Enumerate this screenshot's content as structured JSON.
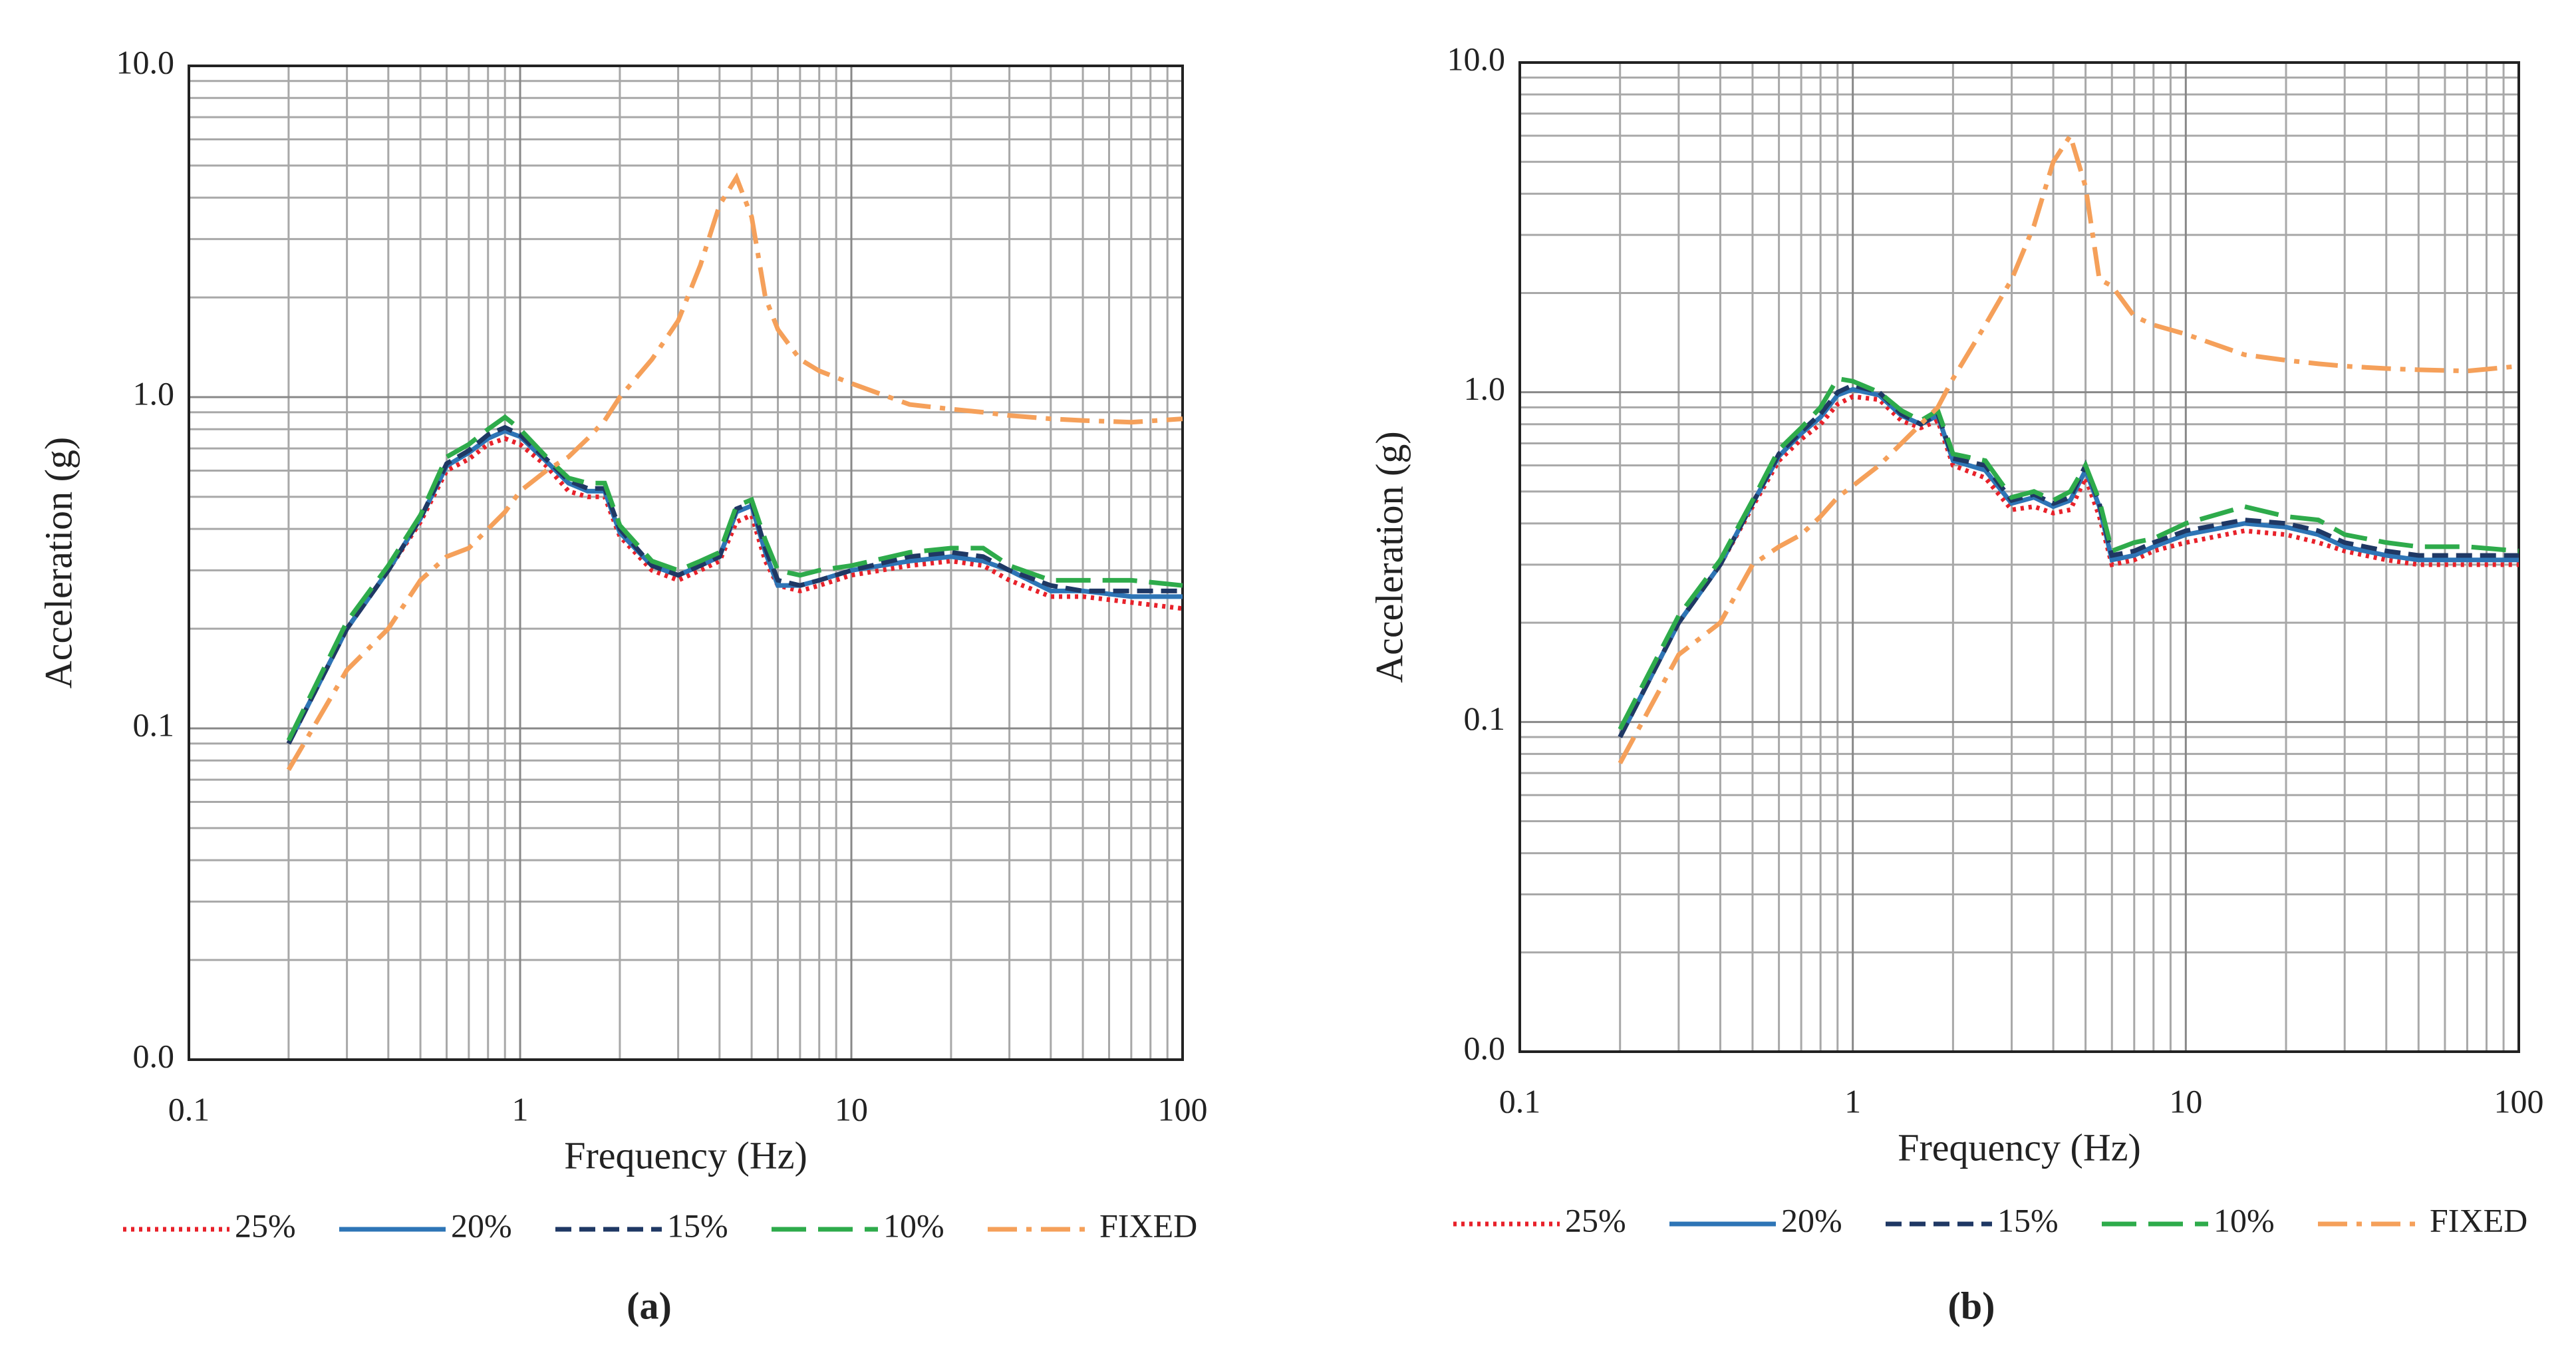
{
  "chart_data": [
    {
      "type": "line",
      "caption": "(a)",
      "xlabel": "Frequency (Hz)",
      "ylabel": "Acceleration (g)",
      "xscale": "log",
      "yscale": "log",
      "grid": true,
      "minor_grid": true,
      "legend": "bottom",
      "xlim": [
        0.1,
        100
      ],
      "xticks": [
        0.1,
        1,
        10,
        100
      ],
      "ylim": [
        0.01,
        10
      ],
      "yticks": [
        {
          "value": 0.01,
          "label": "0.0"
        },
        {
          "value": 0.1,
          "label": "0.1"
        },
        {
          "value": 1,
          "label": "1.0"
        },
        {
          "value": 10,
          "label": "10.0"
        }
      ],
      "x": [
        0.2,
        0.3,
        0.4,
        0.5,
        0.6,
        0.7,
        0.8,
        0.9,
        1.0,
        1.2,
        1.4,
        1.6,
        1.8,
        2.0,
        2.5,
        3,
        3.5,
        4,
        4.5,
        5,
        5.5,
        6,
        7,
        8,
        10,
        15,
        20,
        25,
        30,
        40,
        50,
        70,
        100
      ],
      "series": [
        {
          "name": "25%",
          "color": "#e8212a",
          "style": "dotted",
          "values": [
            0.09,
            0.2,
            0.3,
            0.42,
            0.6,
            0.65,
            0.72,
            0.75,
            0.72,
            0.62,
            0.52,
            0.5,
            0.5,
            0.38,
            0.3,
            0.28,
            0.3,
            0.32,
            0.42,
            0.44,
            0.32,
            0.27,
            0.26,
            0.27,
            0.29,
            0.31,
            0.32,
            0.31,
            0.28,
            0.25,
            0.25,
            0.24,
            0.23
          ]
        },
        {
          "name": "20%",
          "color": "#2e75b6",
          "style": "solid",
          "values": [
            0.09,
            0.2,
            0.3,
            0.43,
            0.62,
            0.68,
            0.75,
            0.79,
            0.76,
            0.64,
            0.55,
            0.52,
            0.52,
            0.39,
            0.31,
            0.29,
            0.31,
            0.33,
            0.45,
            0.47,
            0.34,
            0.27,
            0.27,
            0.28,
            0.3,
            0.32,
            0.33,
            0.32,
            0.3,
            0.26,
            0.26,
            0.25,
            0.25
          ]
        },
        {
          "name": "15%",
          "color": "#1f3864",
          "style": "dashed",
          "values": [
            0.09,
            0.2,
            0.3,
            0.43,
            0.63,
            0.69,
            0.77,
            0.81,
            0.77,
            0.65,
            0.56,
            0.53,
            0.53,
            0.4,
            0.31,
            0.29,
            0.31,
            0.33,
            0.46,
            0.48,
            0.35,
            0.28,
            0.27,
            0.28,
            0.3,
            0.33,
            0.34,
            0.33,
            0.3,
            0.27,
            0.26,
            0.26,
            0.26
          ]
        },
        {
          "name": "10%",
          "color": "#2eab4b",
          "style": "longdash",
          "values": [
            0.092,
            0.21,
            0.31,
            0.44,
            0.66,
            0.72,
            0.8,
            0.87,
            0.8,
            0.66,
            0.57,
            0.55,
            0.55,
            0.41,
            0.32,
            0.3,
            0.32,
            0.34,
            0.47,
            0.49,
            0.37,
            0.3,
            0.29,
            0.3,
            0.31,
            0.34,
            0.35,
            0.35,
            0.31,
            0.28,
            0.28,
            0.28,
            0.27
          ]
        },
        {
          "name": "FIXED",
          "color": "#f5a05a",
          "style": "dashdot",
          "values": [
            0.075,
            0.15,
            0.2,
            0.28,
            0.33,
            0.35,
            0.4,
            0.45,
            0.52,
            0.6,
            0.66,
            0.75,
            0.85,
            1.0,
            1.3,
            1.7,
            2.5,
            3.8,
            4.6,
            3.5,
            2.0,
            1.6,
            1.3,
            1.2,
            1.1,
            0.95,
            0.92,
            0.9,
            0.88,
            0.86,
            0.85,
            0.84,
            0.86
          ]
        }
      ]
    },
    {
      "type": "line",
      "caption": "(b)",
      "xlabel": "Frequency (Hz)",
      "ylabel": "Acceleration (g)",
      "xscale": "log",
      "yscale": "log",
      "grid": true,
      "minor_grid": true,
      "legend": "bottom",
      "xlim": [
        0.1,
        100
      ],
      "xticks": [
        0.1,
        1,
        10,
        100
      ],
      "ylim": [
        0.01,
        10
      ],
      "yticks": [
        {
          "value": 0.01,
          "label": "0.0"
        },
        {
          "value": 0.1,
          "label": "0.1"
        },
        {
          "value": 1,
          "label": "1.0"
        },
        {
          "value": 10,
          "label": "10.0"
        }
      ],
      "x": [
        0.2,
        0.3,
        0.4,
        0.5,
        0.6,
        0.7,
        0.8,
        0.9,
        1.0,
        1.2,
        1.4,
        1.6,
        1.8,
        2.0,
        2.5,
        3,
        3.5,
        4,
        4.5,
        5,
        5.5,
        6,
        7,
        8,
        10,
        15,
        20,
        25,
        30,
        40,
        50,
        70,
        100
      ],
      "series": [
        {
          "name": "25%",
          "color": "#e8212a",
          "style": "dotted",
          "values": [
            0.09,
            0.2,
            0.3,
            0.45,
            0.62,
            0.72,
            0.8,
            0.92,
            0.97,
            0.95,
            0.82,
            0.78,
            0.82,
            0.6,
            0.55,
            0.44,
            0.45,
            0.43,
            0.44,
            0.55,
            0.42,
            0.3,
            0.31,
            0.33,
            0.35,
            0.38,
            0.37,
            0.35,
            0.33,
            0.31,
            0.3,
            0.3,
            0.3
          ]
        },
        {
          "name": "20%",
          "color": "#2e75b6",
          "style": "solid",
          "values": [
            0.09,
            0.2,
            0.3,
            0.46,
            0.64,
            0.75,
            0.84,
            0.98,
            1.02,
            0.98,
            0.85,
            0.8,
            0.85,
            0.62,
            0.58,
            0.46,
            0.48,
            0.45,
            0.47,
            0.58,
            0.45,
            0.31,
            0.32,
            0.34,
            0.37,
            0.4,
            0.39,
            0.37,
            0.34,
            0.32,
            0.31,
            0.31,
            0.31
          ]
        },
        {
          "name": "15%",
          "color": "#1f3864",
          "style": "dashed",
          "values": [
            0.09,
            0.2,
            0.3,
            0.46,
            0.65,
            0.76,
            0.86,
            1.0,
            1.05,
            1.0,
            0.86,
            0.8,
            0.86,
            0.63,
            0.6,
            0.47,
            0.49,
            0.46,
            0.48,
            0.6,
            0.46,
            0.32,
            0.33,
            0.35,
            0.38,
            0.41,
            0.4,
            0.38,
            0.35,
            0.33,
            0.32,
            0.32,
            0.32
          ]
        },
        {
          "name": "10%",
          "color": "#2eab4b",
          "style": "longdash",
          "values": [
            0.095,
            0.21,
            0.31,
            0.47,
            0.67,
            0.78,
            0.9,
            1.1,
            1.08,
            1.0,
            0.88,
            0.82,
            0.88,
            0.65,
            0.62,
            0.48,
            0.5,
            0.47,
            0.5,
            0.6,
            0.47,
            0.33,
            0.35,
            0.36,
            0.4,
            0.45,
            0.42,
            0.41,
            0.37,
            0.35,
            0.34,
            0.34,
            0.33
          ]
        },
        {
          "name": "FIXED",
          "color": "#f5a05a",
          "style": "dashdot",
          "values": [
            0.075,
            0.16,
            0.2,
            0.3,
            0.34,
            0.37,
            0.42,
            0.48,
            0.52,
            0.6,
            0.7,
            0.8,
            0.9,
            1.1,
            1.6,
            2.2,
            3.2,
            5,
            6,
            4.2,
            2.2,
            2.1,
            1.7,
            1.6,
            1.5,
            1.3,
            1.25,
            1.22,
            1.2,
            1.18,
            1.17,
            1.16,
            1.2
          ]
        }
      ]
    }
  ]
}
